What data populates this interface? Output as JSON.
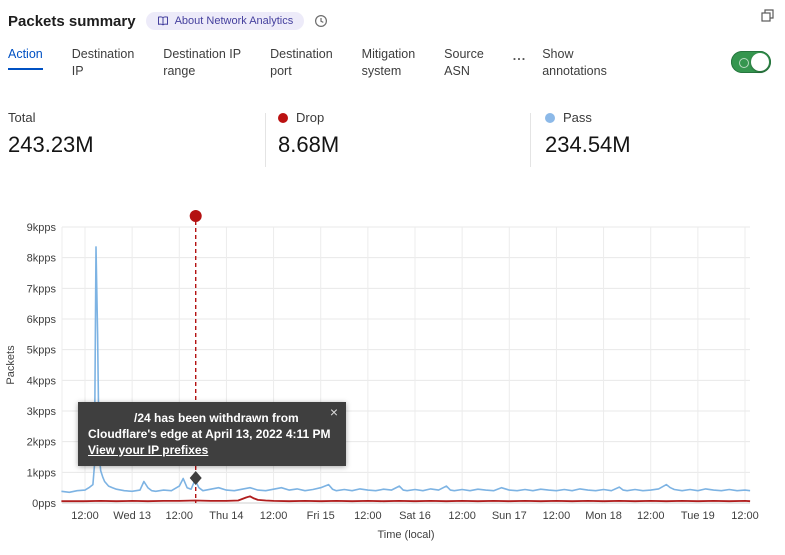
{
  "header": {
    "title": "Packets summary",
    "badge_label": "About Network Analytics"
  },
  "tabs": {
    "items": [
      {
        "line1": "Action",
        "line2": ""
      },
      {
        "line1": "Destination",
        "line2": "IP"
      },
      {
        "line1": "Destination IP",
        "line2": "range"
      },
      {
        "line1": "Destination",
        "line2": "port"
      },
      {
        "line1": "Mitigation",
        "line2": "system"
      },
      {
        "line1": "Source",
        "line2": "ASN"
      }
    ],
    "more": "...",
    "show_annotations": {
      "line1": "Show",
      "line2": "annotations"
    },
    "toggle_on": true
  },
  "stats": {
    "total": {
      "label": "Total",
      "value": "243.23M"
    },
    "drop": {
      "label": "Drop",
      "value": "8.68M",
      "color": "#bb1111"
    },
    "pass": {
      "label": "Pass",
      "value": "234.54M",
      "color": "#8cb9e8"
    }
  },
  "tooltip": {
    "line1": "/24 has been withdrawn from",
    "line2": "Cloudflare's edge at April 13, 2022 4:11 PM",
    "link": "View your IP prefixes",
    "close": "×"
  },
  "chart_data": {
    "type": "line",
    "title": "Packets summary",
    "xlabel": "Time (local)",
    "ylabel": "Packets",
    "ylim": [
      0,
      9
    ],
    "grid": true,
    "y_tick_values": [
      0,
      1,
      2,
      3,
      4,
      5,
      6,
      7,
      8,
      9
    ],
    "y_tick_labels": [
      "0pps",
      "1kpps",
      "2kpps",
      "3kpps",
      "4kpps",
      "5kpps",
      "6kpps",
      "7kpps",
      "8kpps",
      "9kpps"
    ],
    "x_tick_hours": [
      0,
      12,
      24,
      36,
      48,
      60,
      72,
      84,
      96,
      108,
      120,
      132,
      144,
      156,
      168
    ],
    "x_tick_labels": [
      "12:00",
      "Wed 13",
      "12:00",
      "Thu 14",
      "12:00",
      "Fri 15",
      "12:00",
      "Sat 16",
      "12:00",
      "Sun 17",
      "12:00",
      "Mon 18",
      "12:00",
      "Tue 19",
      "12:00"
    ],
    "x_domain_hours": [
      -6,
      169.3
    ],
    "series": [
      {
        "name": "Pass",
        "color": "#7db3e3",
        "width": 1.6,
        "points": [
          [
            -6,
            0.38
          ],
          [
            -4,
            0.35
          ],
          [
            -2,
            0.4
          ],
          [
            0,
            0.42
          ],
          [
            1,
            0.5
          ],
          [
            2,
            0.6
          ],
          [
            2.4,
            1.2
          ],
          [
            2.8,
            8.35
          ],
          [
            3.2,
            5.5
          ],
          [
            3.6,
            1.6
          ],
          [
            4,
            1.05
          ],
          [
            4.5,
            0.85
          ],
          [
            5,
            0.7
          ],
          [
            6,
            0.55
          ],
          [
            7,
            0.5
          ],
          [
            8,
            0.45
          ],
          [
            10,
            0.4
          ],
          [
            12,
            0.38
          ],
          [
            14,
            0.42
          ],
          [
            15,
            0.7
          ],
          [
            16,
            0.5
          ],
          [
            17,
            0.4
          ],
          [
            18,
            0.38
          ],
          [
            20,
            0.42
          ],
          [
            22,
            0.4
          ],
          [
            24,
            0.55
          ],
          [
            25,
            0.8
          ],
          [
            26,
            0.5
          ],
          [
            27,
            0.45
          ],
          [
            28,
            0.75
          ],
          [
            29,
            0.5
          ],
          [
            30,
            0.4
          ],
          [
            32,
            0.45
          ],
          [
            34,
            0.5
          ],
          [
            36,
            0.42
          ],
          [
            38,
            0.4
          ],
          [
            40,
            0.45
          ],
          [
            42,
            0.5
          ],
          [
            44,
            0.42
          ],
          [
            46,
            0.4
          ],
          [
            48,
            0.45
          ],
          [
            50,
            0.5
          ],
          [
            52,
            0.42
          ],
          [
            54,
            0.46
          ],
          [
            56,
            0.4
          ],
          [
            58,
            0.44
          ],
          [
            60,
            0.5
          ],
          [
            62,
            0.6
          ],
          [
            63,
            0.45
          ],
          [
            64,
            0.4
          ],
          [
            66,
            0.44
          ],
          [
            68,
            0.4
          ],
          [
            70,
            0.46
          ],
          [
            72,
            0.42
          ],
          [
            74,
            0.4
          ],
          [
            76,
            0.45
          ],
          [
            78,
            0.42
          ],
          [
            80,
            0.55
          ],
          [
            81,
            0.42
          ],
          [
            82,
            0.4
          ],
          [
            84,
            0.44
          ],
          [
            86,
            0.4
          ],
          [
            88,
            0.46
          ],
          [
            90,
            0.42
          ],
          [
            92,
            0.55
          ],
          [
            93,
            0.42
          ],
          [
            94,
            0.4
          ],
          [
            96,
            0.44
          ],
          [
            98,
            0.4
          ],
          [
            100,
            0.45
          ],
          [
            102,
            0.42
          ],
          [
            104,
            0.4
          ],
          [
            106,
            0.5
          ],
          [
            108,
            0.42
          ],
          [
            110,
            0.4
          ],
          [
            112,
            0.44
          ],
          [
            114,
            0.4
          ],
          [
            116,
            0.45
          ],
          [
            118,
            0.42
          ],
          [
            120,
            0.4
          ],
          [
            122,
            0.44
          ],
          [
            124,
            0.4
          ],
          [
            126,
            0.46
          ],
          [
            128,
            0.42
          ],
          [
            130,
            0.4
          ],
          [
            132,
            0.44
          ],
          [
            134,
            0.4
          ],
          [
            136,
            0.52
          ],
          [
            137,
            0.42
          ],
          [
            138,
            0.4
          ],
          [
            140,
            0.44
          ],
          [
            142,
            0.4
          ],
          [
            144,
            0.42
          ],
          [
            146,
            0.46
          ],
          [
            148,
            0.6
          ],
          [
            149,
            0.5
          ],
          [
            150,
            0.44
          ],
          [
            152,
            0.4
          ],
          [
            154,
            0.44
          ],
          [
            156,
            0.4
          ],
          [
            158,
            0.46
          ],
          [
            160,
            0.42
          ],
          [
            162,
            0.4
          ],
          [
            164,
            0.44
          ],
          [
            166,
            0.4
          ],
          [
            168,
            0.42
          ],
          [
            169.3,
            0.4
          ]
        ]
      },
      {
        "name": "Drop",
        "color": "#b01d1d",
        "width": 1.8,
        "points": [
          [
            -6,
            0.06
          ],
          [
            0,
            0.06
          ],
          [
            4,
            0.07
          ],
          [
            8,
            0.06
          ],
          [
            12,
            0.07
          ],
          [
            16,
            0.06
          ],
          [
            20,
            0.07
          ],
          [
            24,
            0.07
          ],
          [
            28,
            0.08
          ],
          [
            32,
            0.07
          ],
          [
            36,
            0.07
          ],
          [
            39,
            0.08
          ],
          [
            41,
            0.18
          ],
          [
            42,
            0.22
          ],
          [
            43,
            0.15
          ],
          [
            44,
            0.1
          ],
          [
            46,
            0.08
          ],
          [
            48,
            0.07
          ],
          [
            52,
            0.06
          ],
          [
            56,
            0.07
          ],
          [
            60,
            0.06
          ],
          [
            64,
            0.07
          ],
          [
            68,
            0.06
          ],
          [
            72,
            0.07
          ],
          [
            76,
            0.06
          ],
          [
            80,
            0.07
          ],
          [
            84,
            0.06
          ],
          [
            88,
            0.07
          ],
          [
            92,
            0.06
          ],
          [
            96,
            0.07
          ],
          [
            100,
            0.06
          ],
          [
            104,
            0.07
          ],
          [
            108,
            0.06
          ],
          [
            112,
            0.07
          ],
          [
            116,
            0.06
          ],
          [
            120,
            0.07
          ],
          [
            124,
            0.06
          ],
          [
            128,
            0.07
          ],
          [
            132,
            0.06
          ],
          [
            136,
            0.07
          ],
          [
            140,
            0.06
          ],
          [
            144,
            0.07
          ],
          [
            148,
            0.06
          ],
          [
            152,
            0.07
          ],
          [
            156,
            0.06
          ],
          [
            160,
            0.07
          ],
          [
            164,
            0.06
          ],
          [
            168,
            0.07
          ],
          [
            169.3,
            0.06
          ]
        ]
      }
    ],
    "annotation": {
      "x_hours": 28.18,
      "color": "#b41111",
      "label": "/24 has been withdrawn from Cloudflare's edge at April 13, 2022 4:11 PM"
    },
    "legend": [
      {
        "name": "Drop",
        "color": "#bb1111"
      },
      {
        "name": "Pass",
        "color": "#8cb9e8"
      }
    ],
    "legend_position": "top"
  }
}
